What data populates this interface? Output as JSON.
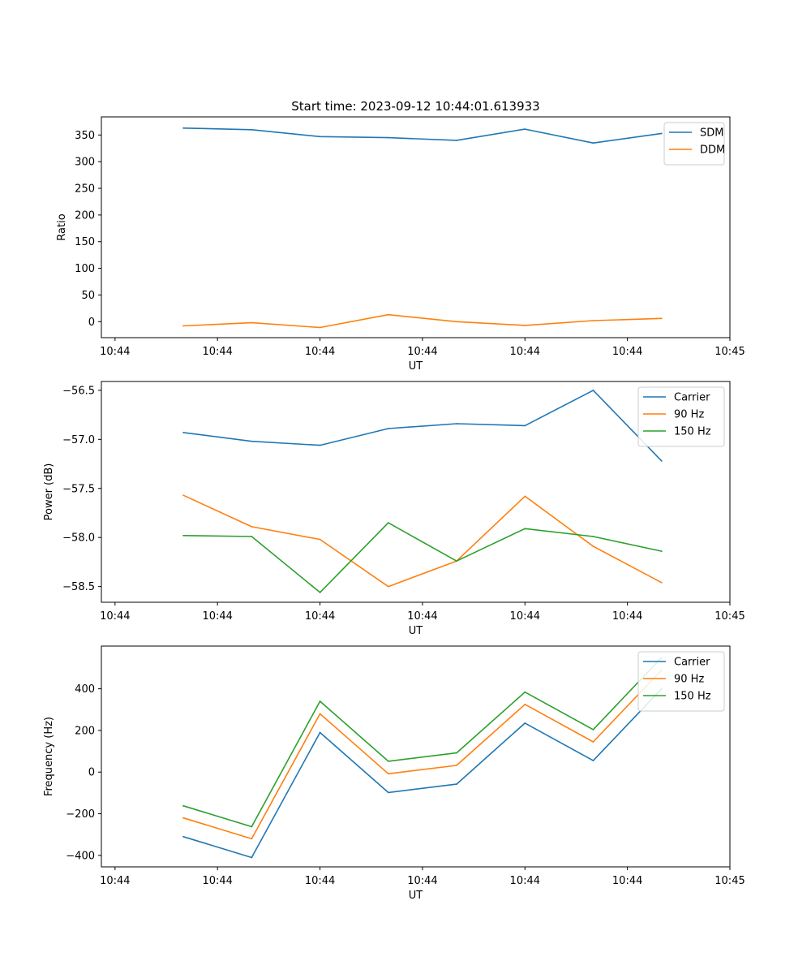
{
  "title": "Start time: 2023-09-12 10:44:01.613933",
  "chart_data": [
    {
      "type": "line",
      "title": "Start time: 2023-09-12 10:44:01.613933",
      "xlabel": "UT",
      "ylabel": "Ratio",
      "x": [
        1,
        2,
        3,
        4,
        5,
        6,
        7,
        8
      ],
      "x_ticks": [
        0,
        1.5,
        3,
        4.5,
        6,
        7.5,
        9
      ],
      "x_tick_labels": [
        "10:44",
        "10:44",
        "10:44",
        "10:44",
        "10:44",
        "10:44",
        "10:45"
      ],
      "xlim": [
        -0.2,
        9.0
      ],
      "ylim": [
        -30,
        384
      ],
      "y_ticks": [
        0,
        50,
        100,
        150,
        200,
        250,
        300,
        350
      ],
      "y_tick_labels": [
        "0",
        "50",
        "100",
        "150",
        "200",
        "250",
        "300",
        "350"
      ],
      "legend": "top-right",
      "series": [
        {
          "name": "SDM",
          "color": "#1f77b4",
          "values": [
            363,
            360,
            347,
            345,
            340,
            361,
            335,
            353
          ]
        },
        {
          "name": "DDM",
          "color": "#ff7f0e",
          "values": [
            -8,
            -2,
            -11,
            13,
            0,
            -7,
            2,
            6
          ]
        }
      ]
    },
    {
      "type": "line",
      "xlabel": "UT",
      "ylabel": "Power (dB)",
      "x": [
        1,
        2,
        3,
        4,
        5,
        6,
        7,
        8
      ],
      "x_ticks": [
        0,
        1.5,
        3,
        4.5,
        6,
        7.5,
        9
      ],
      "x_tick_labels": [
        "10:44",
        "10:44",
        "10:44",
        "10:44",
        "10:44",
        "10:44",
        "10:45"
      ],
      "xlim": [
        -0.2,
        9.0
      ],
      "ylim": [
        -58.66,
        -56.41
      ],
      "y_ticks": [
        -58.5,
        -58.0,
        -57.5,
        -57.0,
        -56.5
      ],
      "y_tick_labels": [
        "−58.5",
        "−58.0",
        "−57.5",
        "−57.0",
        "−56.5"
      ],
      "legend": "top-right",
      "series": [
        {
          "name": "Carrier",
          "color": "#1f77b4",
          "values": [
            -56.93,
            -57.02,
            -57.06,
            -56.89,
            -56.84,
            -56.86,
            -56.5,
            -57.22
          ]
        },
        {
          "name": "90 Hz",
          "color": "#ff7f0e",
          "values": [
            -57.57,
            -57.89,
            -58.02,
            -58.5,
            -58.24,
            -57.58,
            -58.09,
            -58.46
          ]
        },
        {
          "name": "150 Hz",
          "color": "#2ca02c",
          "values": [
            -57.98,
            -57.99,
            -58.56,
            -57.85,
            -58.24,
            -57.91,
            -57.99,
            -58.14
          ]
        }
      ]
    },
    {
      "type": "line",
      "xlabel": "UT",
      "ylabel": "Frequency (Hz)",
      "x": [
        1,
        2,
        3,
        4,
        5,
        6,
        7,
        8
      ],
      "x_ticks": [
        0,
        1.5,
        3,
        4.5,
        6,
        7.5,
        9
      ],
      "x_tick_labels": [
        "10:44",
        "10:44",
        "10:44",
        "10:44",
        "10:44",
        "10:44",
        "10:45"
      ],
      "xlim": [
        -0.2,
        9.0
      ],
      "ylim": [
        -455,
        605
      ],
      "y_ticks": [
        -400,
        -200,
        0,
        200,
        400
      ],
      "y_tick_labels": [
        "−400",
        "−200",
        "0",
        "200",
        "400"
      ],
      "legend": "top-right",
      "series": [
        {
          "name": "Carrier",
          "color": "#1f77b4",
          "values": [
            -310,
            -410,
            190,
            -98,
            -58,
            235,
            55,
            400
          ]
        },
        {
          "name": "90 Hz",
          "color": "#ff7f0e",
          "values": [
            -220,
            -320,
            280,
            -8,
            32,
            325,
            145,
            490
          ]
        },
        {
          "name": "150 Hz",
          "color": "#2ca02c",
          "values": [
            -162,
            -262,
            340,
            52,
            92,
            384,
            204,
            550
          ]
        }
      ]
    }
  ]
}
